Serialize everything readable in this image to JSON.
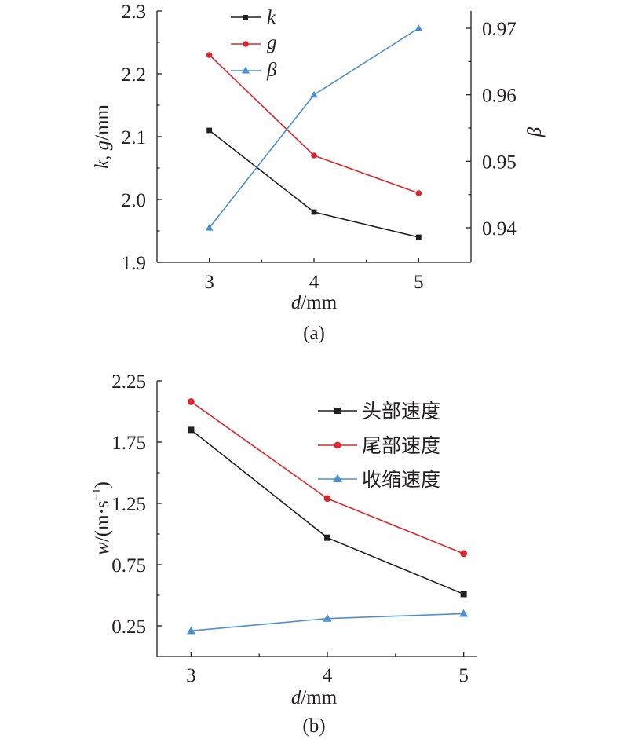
{
  "chart_data": [
    {
      "type": "line",
      "caption": "(a)",
      "x": [
        3,
        4,
        5
      ],
      "xlabel": {
        "var": "d",
        "unit": "/mm"
      },
      "xticks": [
        "3",
        "4",
        "5"
      ],
      "xlim": [
        2.5,
        5.5
      ],
      "ylabel": {
        "k": "k",
        "sep": ", ",
        "g": "g",
        "unit": "/mm"
      },
      "ylim": [
        1.9,
        2.3
      ],
      "yticks": [
        "1.9",
        "2.0",
        "2.1",
        "2.2",
        "2.3"
      ],
      "y2label": "β",
      "y2lim": [
        0.9348,
        0.9726
      ],
      "y2ticks": [
        "0.94",
        "0.95",
        "0.96",
        "0.97"
      ],
      "series": [
        {
          "name": "k",
          "axis": "left",
          "color": "#231f20",
          "marker": "square",
          "values": [
            2.11,
            1.98,
            1.94
          ]
        },
        {
          "name": "g",
          "axis": "left",
          "color": "#d7282f",
          "marker": "circle",
          "values": [
            2.23,
            2.07,
            2.01
          ]
        },
        {
          "name": "β",
          "axis": "right",
          "color": "#4a8fcf",
          "marker": "triangle",
          "values": [
            0.94,
            0.96,
            0.97
          ]
        }
      ],
      "legend_position": "top-center"
    },
    {
      "type": "line",
      "caption": "(b)",
      "x": [
        3,
        4,
        5
      ],
      "xlabel": {
        "var": "d",
        "unit": "/mm"
      },
      "xticks": [
        "3",
        "4",
        "5"
      ],
      "xlim": [
        2.75,
        5.1
      ],
      "ylabel": {
        "var": "w",
        "unit_pre": "/(m·s",
        "unit_exp": "−1",
        "unit_post": ")"
      },
      "ylim": [
        0.0,
        2.25
      ],
      "yticks": [
        "0.25",
        "0.75",
        "1.25",
        "1.75",
        "2.25"
      ],
      "yminor": [
        0.5,
        1.0,
        1.5,
        2.0
      ],
      "series": [
        {
          "name": "头部速度",
          "color": "#231f20",
          "marker": "square",
          "values": [
            1.85,
            0.97,
            0.51
          ]
        },
        {
          "name": "尾部速度",
          "color": "#d7282f",
          "marker": "circle",
          "values": [
            2.08,
            1.29,
            0.84
          ]
        },
        {
          "name": "收缩速度",
          "color": "#4a8fcf",
          "marker": "triangle",
          "values": [
            0.21,
            0.31,
            0.35
          ]
        }
      ],
      "legend_position": "top-right"
    }
  ]
}
